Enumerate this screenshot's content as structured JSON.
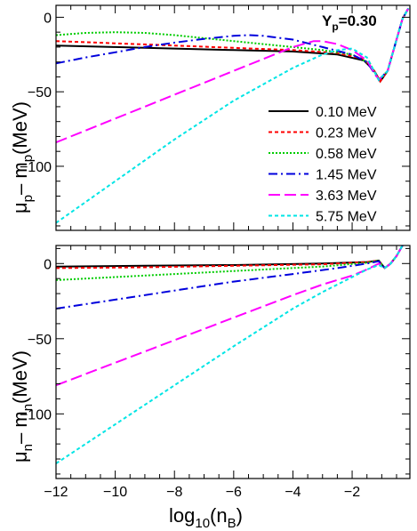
{
  "chart_data": [
    {
      "type": "line",
      "xlabel_base": "log",
      "xlabel_sub": "10",
      "xlabel_arg": "(n",
      "xlabel_arg_sub": "B",
      "xlabel_close": ")",
      "ylabel_main": "μ",
      "ylabel_sub": "p",
      "ylabel_mid": "– m",
      "ylabel_sub2": "p",
      "ylabel_tail": "(MeV)",
      "annotation_main": "Y",
      "annotation_sub": "p",
      "annotation_tail": "=0.30",
      "xlim": [
        -12,
        -0.05
      ],
      "ylim": [
        -143,
        8
      ],
      "x_ticks": [
        -12,
        -10,
        -8,
        -6,
        -4,
        -2
      ],
      "y_ticks": [
        0,
        -50,
        -100
      ],
      "legend_position": "right-center",
      "series": [
        {
          "name": "0.10 MeV",
          "color": "#000000",
          "dash": "",
          "x": [
            -12,
            -10,
            -8,
            -6,
            -4,
            -2.5,
            -1.6,
            -1.25,
            -1.05,
            -0.8,
            -0.5,
            -0.3,
            -0.1
          ],
          "y": [
            -19,
            -20,
            -21,
            -22,
            -23,
            -25,
            -29,
            -36,
            -43,
            -36,
            -15,
            -1,
            6
          ]
        },
        {
          "name": "0.23 MeV",
          "color": "#ff0000",
          "dash": "4,3",
          "x": [
            -12,
            -10,
            -8,
            -6,
            -4,
            -2.5,
            -1.6,
            -1.25,
            -1.05,
            -0.8,
            -0.5,
            -0.3,
            -0.1
          ],
          "y": [
            -16,
            -17.5,
            -19,
            -20.5,
            -22,
            -24,
            -28,
            -36,
            -43,
            -36,
            -15,
            -1,
            6
          ]
        },
        {
          "name": "0.58 MeV",
          "color": "#00cc00",
          "dash": "2,2",
          "x": [
            -12,
            -11,
            -10,
            -9,
            -8,
            -7,
            -6,
            -5,
            -4,
            -3,
            -2,
            -1.4,
            -1.1,
            -0.8,
            -0.5,
            -0.3,
            -0.1
          ],
          "y": [
            -12,
            -10.5,
            -10,
            -10.5,
            -12,
            -14,
            -16,
            -18,
            -20,
            -22,
            -25,
            -31,
            -42,
            -36,
            -15,
            -1,
            6
          ]
        },
        {
          "name": "1.45 MeV",
          "color": "#0000dd",
          "dash": "10,4,2,4",
          "x": [
            -12,
            -11,
            -10,
            -9,
            -8,
            -7,
            -6,
            -5.5,
            -5,
            -4,
            -3,
            -2,
            -1.5,
            -1.1,
            -0.8,
            -0.5,
            -0.3,
            -0.1
          ],
          "y": [
            -31,
            -27,
            -23.5,
            -20,
            -17,
            -14.5,
            -12.5,
            -12,
            -12.5,
            -15,
            -20,
            -25,
            -30,
            -42,
            -36,
            -15,
            -1,
            6
          ]
        },
        {
          "name": "3.63 MeV",
          "color": "#ff00ff",
          "dash": "13,5",
          "x": [
            -12,
            -10,
            -8,
            -6,
            -5,
            -4,
            -3.3,
            -3,
            -2.5,
            -2,
            -1.5,
            -1.1,
            -0.8,
            -0.5,
            -0.3,
            -0.1
          ],
          "y": [
            -84,
            -68,
            -52,
            -36,
            -28,
            -20,
            -16,
            -16,
            -18,
            -22,
            -29,
            -42,
            -36,
            -15,
            -1,
            6
          ]
        },
        {
          "name": "5.75 MeV",
          "color": "#00e5e5",
          "dash": "4,3",
          "x": [
            -12,
            -10,
            -8,
            -6,
            -4,
            -3,
            -2.5,
            -2,
            -1.5,
            -1.1,
            -0.8,
            -0.5,
            -0.3,
            -0.1
          ],
          "y": [
            -138,
            -110,
            -82,
            -56,
            -34,
            -25,
            -22,
            -21,
            -27,
            -42,
            -36,
            -15,
            -1,
            6
          ]
        }
      ]
    },
    {
      "type": "line",
      "xlabel_base": "log",
      "xlabel_sub": "10",
      "xlabel_arg": "(n",
      "xlabel_arg_sub": "B",
      "xlabel_close": ")",
      "ylabel_main": "μ",
      "ylabel_sub": "n",
      "ylabel_mid": "– m",
      "ylabel_sub2": "n",
      "ylabel_tail": "(MeV)",
      "xlim": [
        -12,
        -0.05
      ],
      "ylim": [
        -143,
        12
      ],
      "x_ticks": [
        -12,
        -10,
        -8,
        -6,
        -4,
        -2
      ],
      "x_tick_labels": [
        "−12",
        "−10",
        "−8",
        "−6",
        "−4",
        "−2"
      ],
      "y_ticks": [
        0,
        -50,
        -100
      ],
      "y_tick_labels": [
        "0",
        "−50",
        "−100"
      ],
      "series": [
        {
          "name": "0.10 MeV",
          "color": "#000000",
          "dash": "",
          "x": [
            -12,
            -9,
            -6,
            -3,
            -1.5,
            -1.1,
            -0.9,
            -0.7,
            -0.5,
            -0.3
          ],
          "y": [
            -2,
            -1.5,
            -1,
            0,
            1,
            2,
            -3,
            0,
            5,
            12
          ]
        },
        {
          "name": "0.23 MeV",
          "color": "#ff0000",
          "dash": "4,3",
          "x": [
            -12,
            -9,
            -6,
            -3,
            -1.5,
            -1.1,
            -0.9,
            -0.7,
            -0.5,
            -0.3
          ],
          "y": [
            -3,
            -2.5,
            -1.5,
            -0.5,
            1,
            2,
            -3,
            0,
            5,
            12
          ]
        },
        {
          "name": "0.58 MeV",
          "color": "#00cc00",
          "dash": "2,2",
          "x": [
            -12,
            -9,
            -6,
            -3,
            -1.5,
            -1.1,
            -0.9,
            -0.7,
            -0.5,
            -0.3
          ],
          "y": [
            -11,
            -8,
            -5,
            -2,
            0.5,
            2,
            -3,
            0,
            5,
            12
          ]
        },
        {
          "name": "1.45 MeV",
          "color": "#0000dd",
          "dash": "10,4,2,4",
          "x": [
            -12,
            -10,
            -8,
            -6,
            -4,
            -2.5,
            -1.5,
            -1.1,
            -0.9,
            -0.7,
            -0.5,
            -0.3
          ],
          "y": [
            -30,
            -24,
            -18,
            -12,
            -7,
            -3,
            0,
            1.5,
            -3,
            0,
            5,
            12
          ]
        },
        {
          "name": "3.63 MeV",
          "color": "#ff00ff",
          "dash": "13,5",
          "x": [
            -12,
            -10,
            -8,
            -6,
            -4,
            -3,
            -2,
            -1.5,
            -1.1,
            -0.9,
            -0.7,
            -0.5,
            -0.3
          ],
          "y": [
            -81,
            -66,
            -51,
            -36,
            -21,
            -14,
            -8,
            -4,
            0,
            -3,
            0,
            5,
            12
          ]
        },
        {
          "name": "5.75 MeV",
          "color": "#00e5e5",
          "dash": "4,3",
          "x": [
            -12,
            -10,
            -8,
            -6,
            -4,
            -3,
            -2,
            -1.5,
            -1.1,
            -0.9,
            -0.7,
            -0.5,
            -0.3
          ],
          "y": [
            -133,
            -107,
            -81,
            -55,
            -30,
            -19,
            -9,
            -4,
            -1,
            -3,
            0,
            5,
            12
          ]
        }
      ]
    }
  ],
  "panel1_y_tick_labels": [
    "0",
    "−50",
    "−100"
  ],
  "panel1_x_tick_labels": [
    "",
    "",
    "",
    "",
    "",
    ""
  ]
}
